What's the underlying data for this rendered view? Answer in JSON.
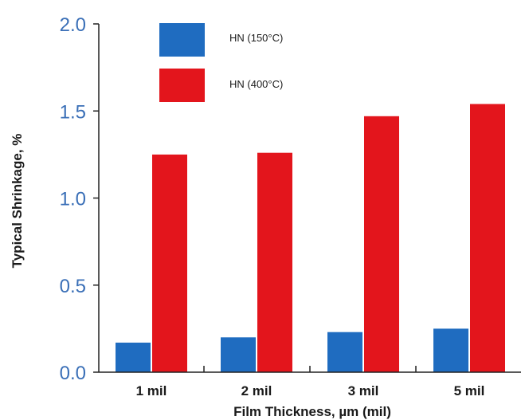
{
  "chart_data": {
    "type": "bar",
    "categories": [
      "1 mil",
      "2 mil",
      "3 mil",
      "5 mil"
    ],
    "series": [
      {
        "name": "HN (150°C)",
        "color": "#1F6CC0",
        "values": [
          0.17,
          0.2,
          0.23,
          0.25
        ]
      },
      {
        "name": "HN (400°C)",
        "color": "#E3151C",
        "values": [
          1.25,
          1.26,
          1.47,
          1.54
        ]
      }
    ],
    "title": "",
    "xlabel": "Film Thickness, µm (mil)",
    "ylabel": "Typical Shrinkage, %",
    "ylim": [
      0,
      2.0
    ],
    "yticks": [
      "0.0",
      "0.5",
      "1.0",
      "1.5",
      "2.0"
    ],
    "legend_position": "top-left",
    "grid": false,
    "colors": {
      "axis": "#222222",
      "ytick_text": "#3A6FB7"
    }
  }
}
